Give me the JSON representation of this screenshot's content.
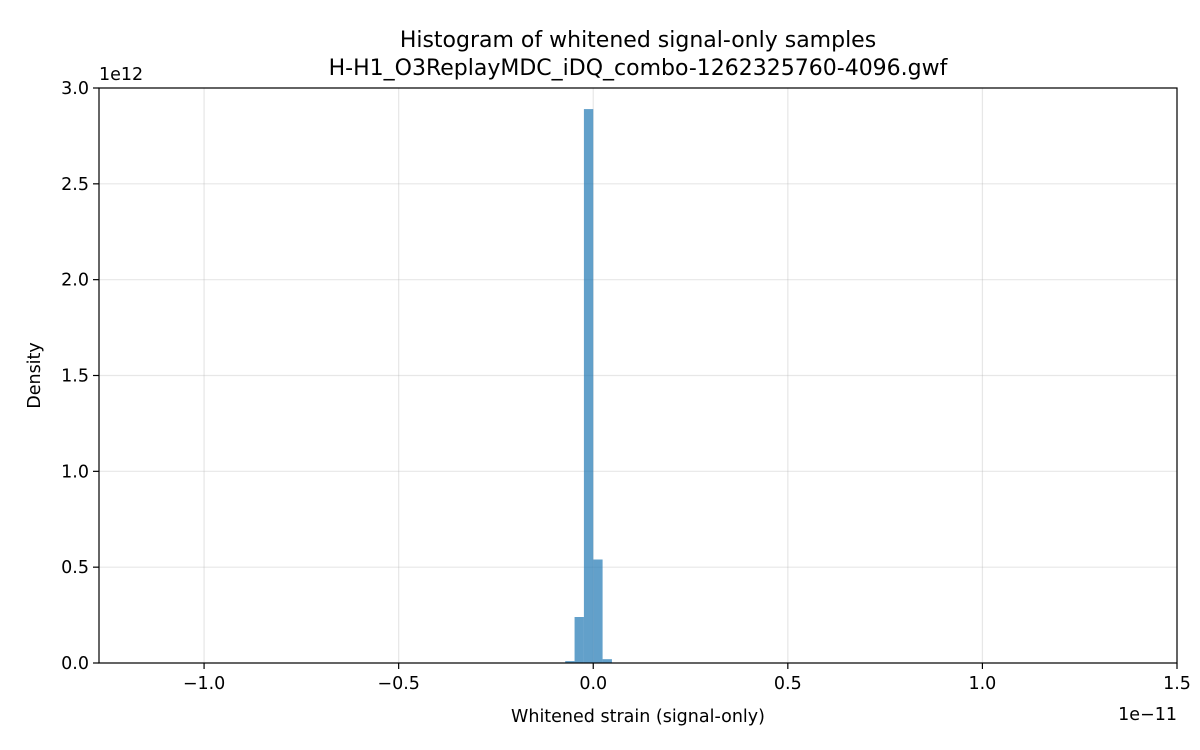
{
  "chart_data": {
    "type": "bar",
    "title": "Histogram of whitened signal-only samples",
    "subtitle": "H-H1_O3ReplayMDC_iDQ_combo-1262325760-4096.gwf",
    "xlabel": "Whitened strain (signal-only)",
    "ylabel": "Density",
    "x_offset_label": "1e−11",
    "y_offset_label": "1e12",
    "xlim": [
      -1.27e-11,
      1.5e-11
    ],
    "ylim": [
      0,
      3000000000000.0
    ],
    "grid": true,
    "bar_color": "#1f77b4",
    "bar_alpha": 0.7,
    "x_ticks": [
      {
        "value": -1e-11,
        "label": "−1.0"
      },
      {
        "value": -5e-12,
        "label": "−0.5"
      },
      {
        "value": 0.0,
        "label": "0.0"
      },
      {
        "value": 5e-12,
        "label": "0.5"
      },
      {
        "value": 1e-11,
        "label": "1.0"
      },
      {
        "value": 1.5e-11,
        "label": "1.5"
      }
    ],
    "y_ticks": [
      {
        "value": 0.0,
        "label": "0.0"
      },
      {
        "value": 500000000000.0,
        "label": "0.5"
      },
      {
        "value": 1000000000000.0,
        "label": "1.0"
      },
      {
        "value": 1500000000000.0,
        "label": "1.5"
      },
      {
        "value": 2000000000000.0,
        "label": "2.0"
      },
      {
        "value": 2500000000000.0,
        "label": "2.5"
      },
      {
        "value": 3000000000000.0,
        "label": "3.0"
      }
    ],
    "bins": [
      {
        "x0": -7.2e-13,
        "x1": -4.8e-13,
        "density": 10000000000.0
      },
      {
        "x0": -4.8e-13,
        "x1": -2.4e-13,
        "density": 240000000000.0
      },
      {
        "x0": -2.4e-13,
        "x1": 0.0,
        "density": 2890000000000.0
      },
      {
        "x0": 0.0,
        "x1": 2.4e-13,
        "density": 540000000000.0
      },
      {
        "x0": 2.4e-13,
        "x1": 4.8e-13,
        "density": 20000000000.0
      }
    ]
  }
}
